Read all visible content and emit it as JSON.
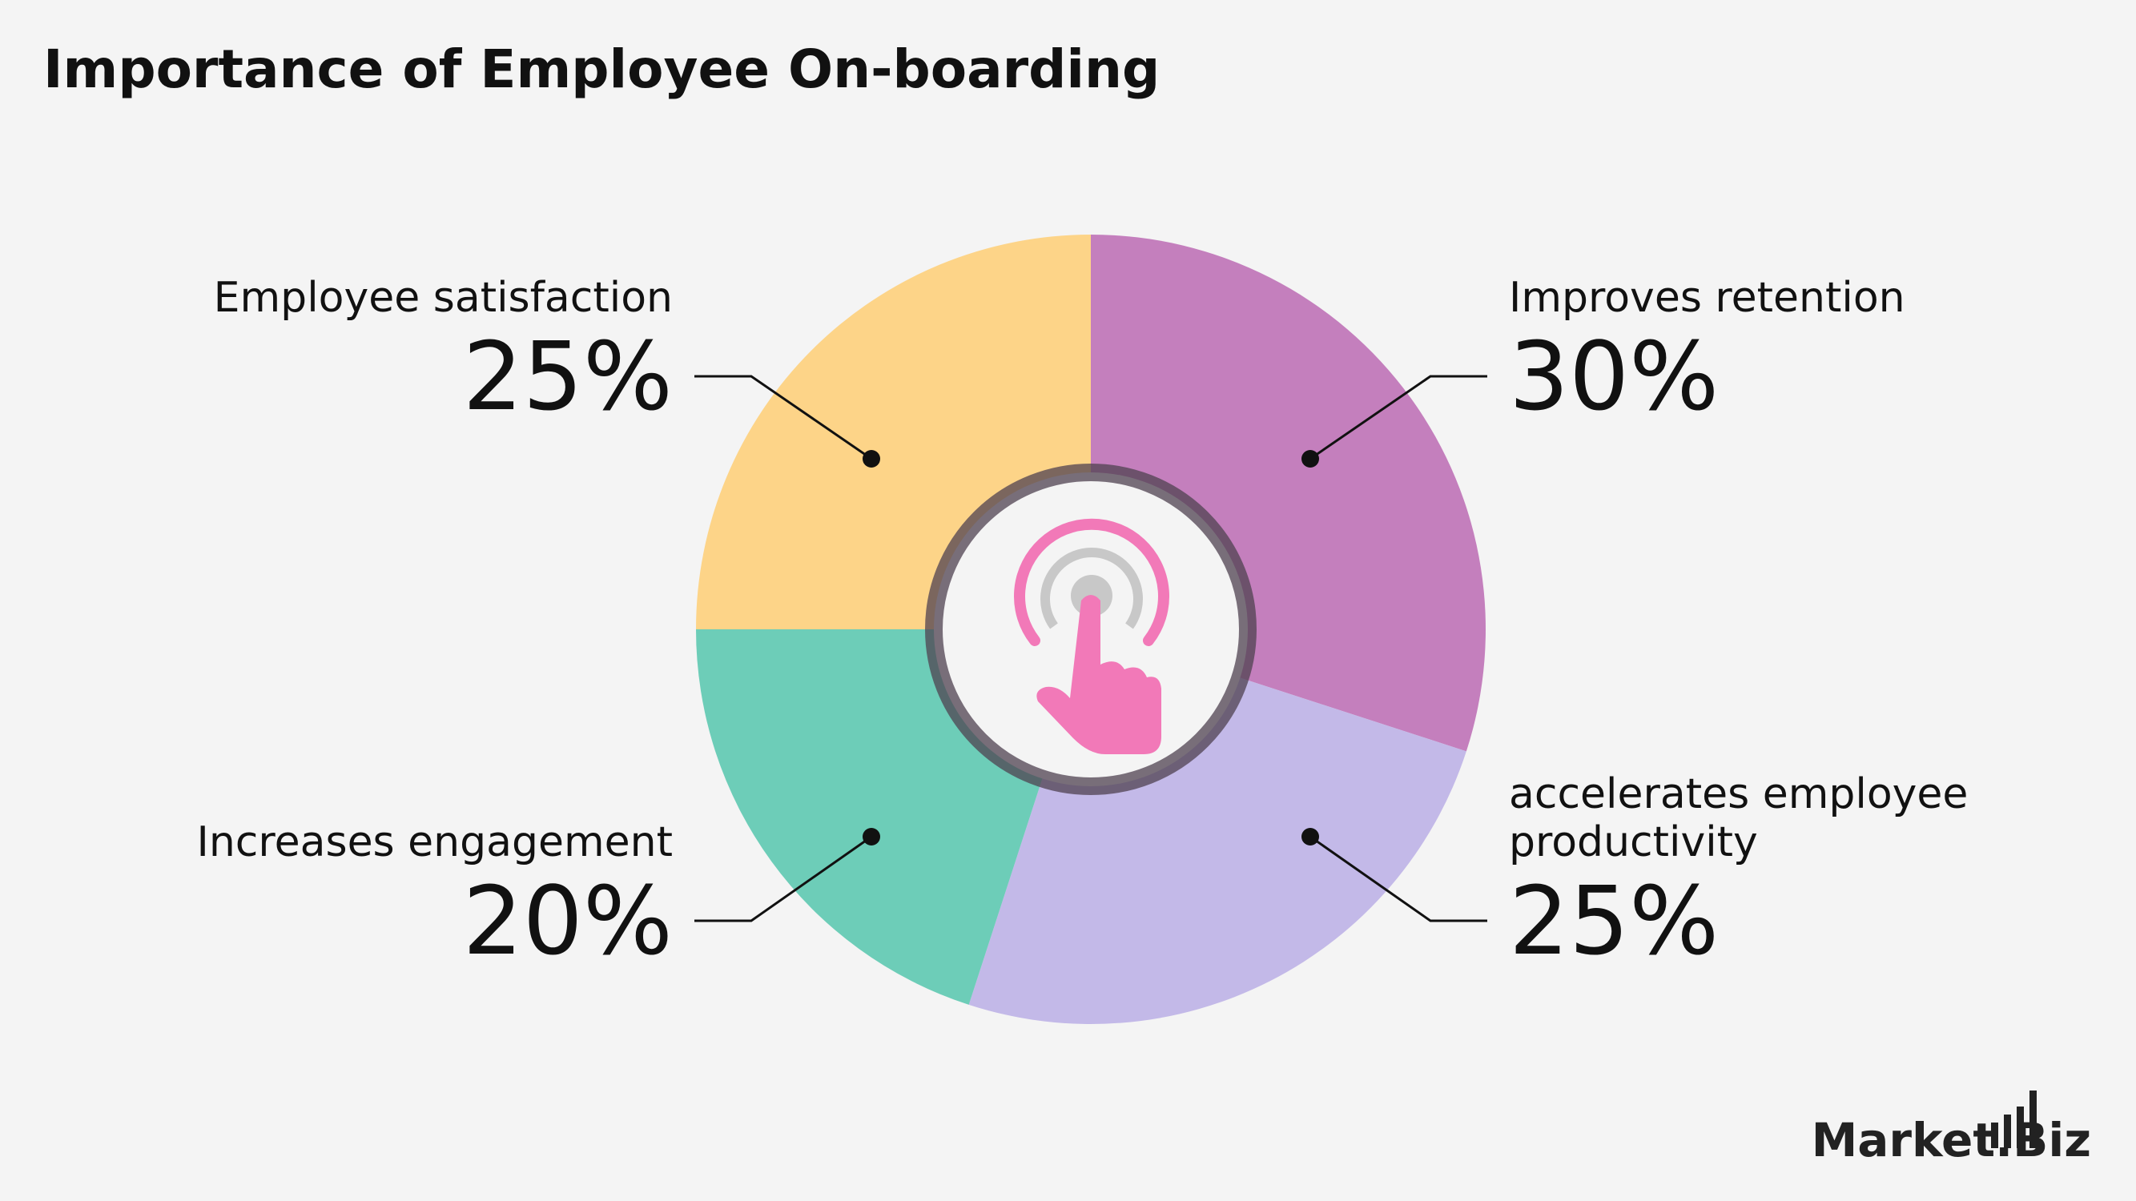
{
  "chart_data": {
    "type": "pie",
    "title": "Importance of Employee On-boarding",
    "categories": [
      "Improves retention",
      "accelerates employee productivity",
      "Increases engagement",
      "Employee satisfaction"
    ],
    "values": [
      30,
      25,
      20,
      25
    ],
    "value_labels": [
      "30%",
      "25%",
      "20%",
      "25%"
    ],
    "colors": [
      "#c47fbd",
      "#c3b9e8",
      "#6dcdb8",
      "#fdd488"
    ]
  },
  "brand": "Market.Biz"
}
